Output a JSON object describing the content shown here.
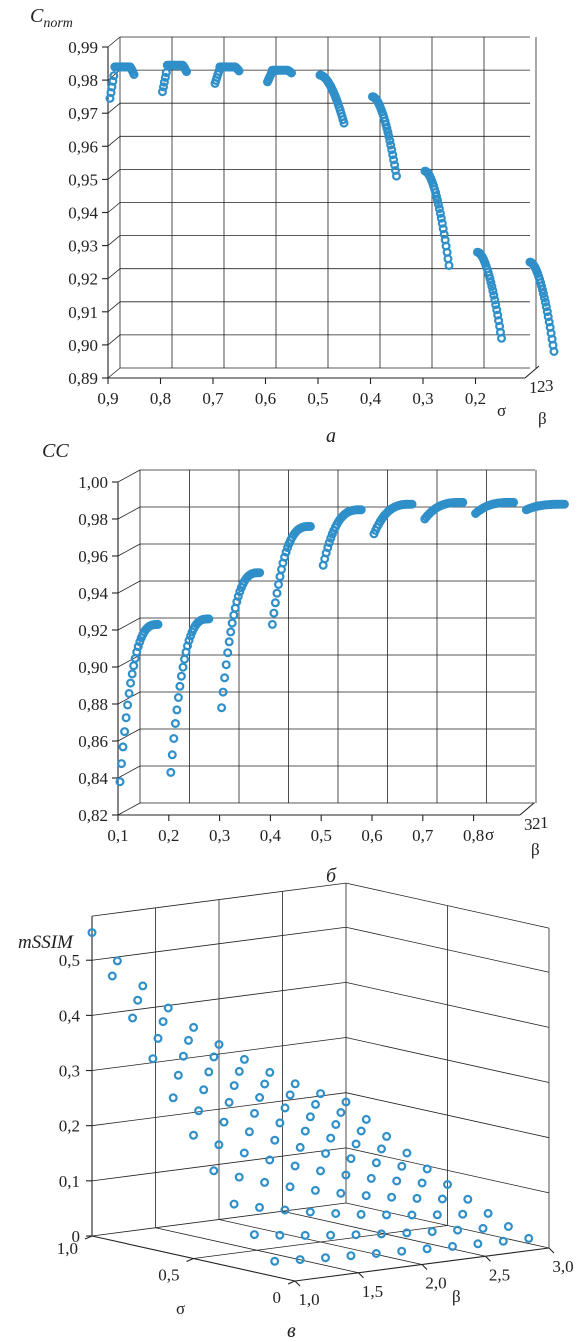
{
  "colors": {
    "marker": "#2f8fc9",
    "axis": "#222222"
  },
  "chart_data": [
    {
      "type": "scatter",
      "panel_label": "а",
      "ylabel": "C",
      "ylabel_sub": "norm",
      "xlabel": "σ",
      "depth_label": "β",
      "depth_ticks": [
        "1",
        "2",
        "3"
      ],
      "y_ticks": [
        "0,99",
        "0,98",
        "0,97",
        "0,96",
        "0,95",
        "0,94",
        "0,93",
        "0,92",
        "0,91",
        "0,90",
        "0,89"
      ],
      "x_ticks": [
        "0,9",
        "0,8",
        "0,7",
        "0,6",
        "0,5",
        "0,4",
        "0,3",
        "0,2"
      ],
      "ylim": [
        0.89,
        0.99
      ],
      "sigma": [
        0.9,
        0.8,
        0.7,
        0.6,
        0.5,
        0.4,
        0.3,
        0.2,
        0.1
      ],
      "beta_range": [
        1,
        3
      ],
      "curve_min": [
        0.9745,
        0.9765,
        0.979,
        0.9795,
        0.967,
        0.951,
        0.924,
        0.902,
        0.898
      ],
      "curve_max": [
        0.984,
        0.9845,
        0.984,
        0.983,
        0.9815,
        0.975,
        0.9525,
        0.928,
        0.925
      ]
    },
    {
      "type": "scatter",
      "panel_label": "б",
      "ylabel": "CC",
      "xlabel": "σ",
      "depth_label": "β",
      "depth_ticks": [
        "3",
        "2",
        "1"
      ],
      "y_ticks": [
        "1,00",
        "0,98",
        "0,96",
        "0,94",
        "0,92",
        "0,90",
        "0,88",
        "0,86",
        "0,84",
        "0,82"
      ],
      "x_ticks": [
        "0,1",
        "0,2",
        "0,3",
        "0,4",
        "0,5",
        "0,6",
        "0,7",
        "0,8"
      ],
      "ylim": [
        0.82,
        1.0
      ],
      "sigma": [
        0.1,
        0.2,
        0.3,
        0.4,
        0.5,
        0.6,
        0.7,
        0.8,
        0.9
      ],
      "beta_range": [
        3,
        1
      ],
      "curve_min": [
        0.838,
        0.843,
        0.878,
        0.923,
        0.955,
        0.972,
        0.98,
        0.983,
        0.985
      ],
      "curve_max": [
        0.923,
        0.926,
        0.951,
        0.976,
        0.985,
        0.988,
        0.989,
        0.989,
        0.988
      ]
    },
    {
      "type": "scatter",
      "panel_label": "в",
      "ylabel": "mSSIM",
      "xlabel": "σ",
      "depth_label": "β",
      "z_ticks": [
        "0",
        "0,1",
        "0,2",
        "0,3",
        "0,4",
        "0,5"
      ],
      "sigma_ticks": [
        "1,0",
        "0,5",
        "0"
      ],
      "beta_ticks": [
        "1,0",
        "1,5",
        "2,0",
        "2,5",
        "3,0"
      ],
      "zlim": [
        0,
        0.55
      ],
      "sigma_values": [
        1.0,
        0.9,
        0.8,
        0.7,
        0.6,
        0.5,
        0.4,
        0.3,
        0.2,
        0.1
      ],
      "beta_values": [
        1.0,
        1.2,
        1.4,
        1.6,
        1.8,
        2.0,
        2.2,
        2.4,
        2.6,
        2.8,
        3.0
      ]
    }
  ]
}
